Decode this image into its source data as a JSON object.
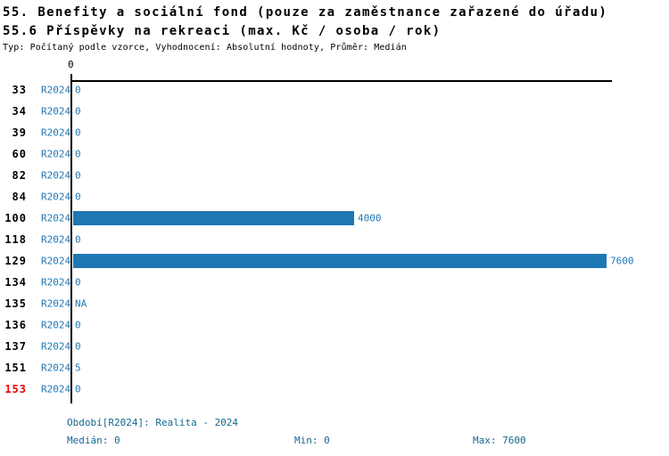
{
  "header": {
    "title_line1": "55. Benefity a sociální fond (pouze za zaměstnance zařazené do úřadu)",
    "title_line2": "55.6 Příspěvky na rekreaci (max. Kč / osoba / rok)",
    "meta_line": "Typ: Počítaný podle vzorce, Vyhodnocení: Absolutní hodnoty, Průměr: Medián"
  },
  "axis": {
    "zero_label": "0"
  },
  "chart_data": {
    "type": "bar",
    "orientation": "horizontal",
    "title": "55.6 Příspěvky na rekreaci (max. Kč / osoba / rok)",
    "categories": [
      "33",
      "34",
      "39",
      "60",
      "82",
      "84",
      "100",
      "118",
      "129",
      "134",
      "135",
      "136",
      "137",
      "151",
      "153"
    ],
    "series": [
      {
        "name": "R2024",
        "values": [
          0,
          0,
          0,
          0,
          0,
          0,
          4000,
          0,
          7600,
          0,
          null,
          0,
          0,
          5,
          0
        ],
        "value_labels": [
          "0",
          "0",
          "0",
          "0",
          "0",
          "0",
          "4000",
          "0",
          "7600",
          "0",
          "NA",
          "0",
          "0",
          "5",
          "0"
        ]
      }
    ],
    "xlim": [
      0,
      7700
    ],
    "grid": false,
    "legend": false,
    "highlighted_category": "153",
    "median": 0,
    "min": 0,
    "max": 7600
  },
  "rows": [
    {
      "id": "33",
      "period": "R2024",
      "value": 0,
      "label": "0",
      "highlight": false
    },
    {
      "id": "34",
      "period": "R2024",
      "value": 0,
      "label": "0",
      "highlight": false
    },
    {
      "id": "39",
      "period": "R2024",
      "value": 0,
      "label": "0",
      "highlight": false
    },
    {
      "id": "60",
      "period": "R2024",
      "value": 0,
      "label": "0",
      "highlight": false
    },
    {
      "id": "82",
      "period": "R2024",
      "value": 0,
      "label": "0",
      "highlight": false
    },
    {
      "id": "84",
      "period": "R2024",
      "value": 0,
      "label": "0",
      "highlight": false
    },
    {
      "id": "100",
      "period": "R2024",
      "value": 4000,
      "label": "4000",
      "highlight": false
    },
    {
      "id": "118",
      "period": "R2024",
      "value": 0,
      "label": "0",
      "highlight": false
    },
    {
      "id": "129",
      "period": "R2024",
      "value": 7600,
      "label": "7600",
      "highlight": false
    },
    {
      "id": "134",
      "period": "R2024",
      "value": 0,
      "label": "0",
      "highlight": false
    },
    {
      "id": "135",
      "period": "R2024",
      "value": null,
      "label": "NA",
      "highlight": false
    },
    {
      "id": "136",
      "period": "R2024",
      "value": 0,
      "label": "0",
      "highlight": false
    },
    {
      "id": "137",
      "period": "R2024",
      "value": 0,
      "label": "0",
      "highlight": false
    },
    {
      "id": "151",
      "period": "R2024",
      "value": 5,
      "label": "5",
      "highlight": false
    },
    {
      "id": "153",
      "period": "R2024",
      "value": 0,
      "label": "0",
      "highlight": true
    }
  ],
  "footer": {
    "period_info": "Období[R2024]: Realita - 2024",
    "median_label": "Medián: 0",
    "min_label": "Min: 0",
    "max_label": "Max: 7600"
  },
  "colors": {
    "bar_blue": "#1f77b4",
    "link_blue": "#1f77b4",
    "footer_teal": "#17678f",
    "highlight_red": "#ee0000",
    "axis_black": "#000000"
  }
}
